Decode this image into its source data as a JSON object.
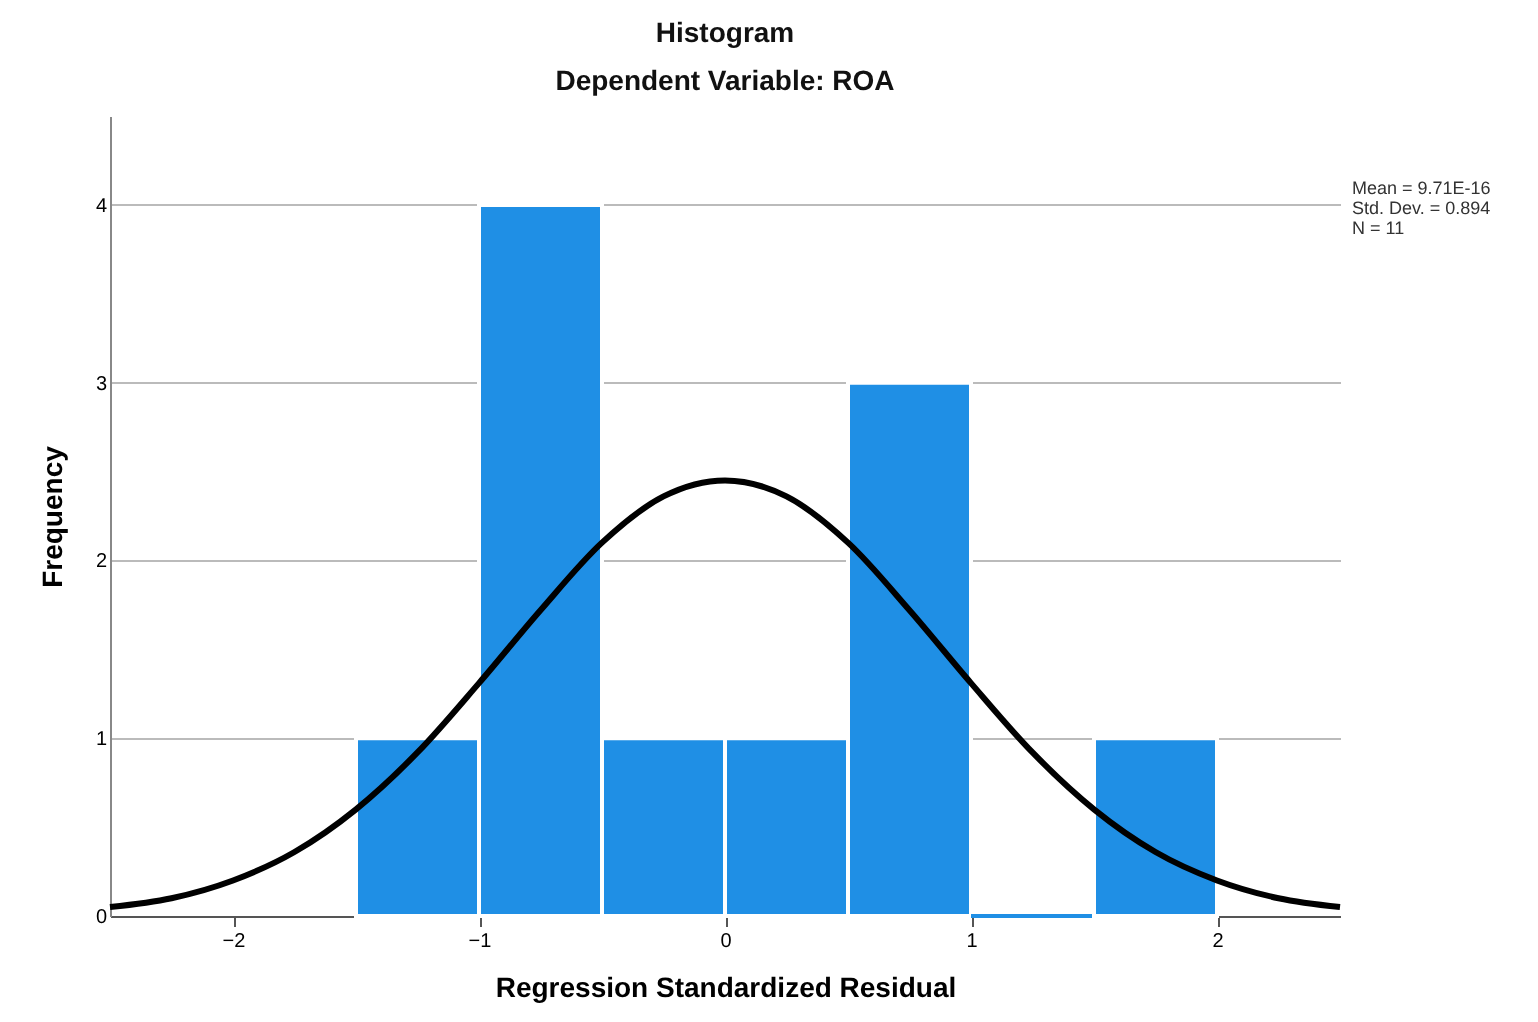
{
  "chart_data": {
    "type": "histogram",
    "title": "Histogram",
    "subtitle": "Dependent Variable: ROA",
    "xlabel": "Regression Standardized Residual",
    "ylabel": "Frequency",
    "bins": [
      -1.5,
      -1,
      -0.5,
      0,
      0.5,
      1,
      1.5,
      2
    ],
    "values": [
      1,
      4,
      1,
      1,
      3,
      0,
      1
    ],
    "color": "#1f8fe5",
    "series": [
      {
        "type": "line",
        "color": "#000000",
        "x": [
          -2.5,
          -2.25,
          -2,
          -1.75,
          -1.5,
          -1.25,
          -1,
          -0.75,
          -0.5,
          -0.25,
          0,
          0.25,
          0.5,
          0.75,
          1,
          1.25,
          1.5,
          1.75,
          2,
          2.25,
          2.5
        ],
        "values": [
          0.05,
          0.1,
          0.2,
          0.36,
          0.6,
          0.92,
          1.31,
          1.72,
          2.1,
          2.36,
          2.45,
          2.36,
          2.1,
          1.72,
          1.31,
          0.92,
          0.6,
          0.36,
          0.2,
          0.1,
          0.05
        ]
      }
    ],
    "xlim": [
      -2.5,
      2.5
    ],
    "xticks": [
      -2,
      -1,
      0,
      1,
      2
    ],
    "ylim": [
      0,
      4.5
    ],
    "yticks": [
      0,
      1,
      2,
      3,
      4
    ],
    "grid": "y",
    "annotations": [
      "Mean = 9.71E-16",
      "Std. Dev. = 0.894",
      "N = 11"
    ]
  }
}
